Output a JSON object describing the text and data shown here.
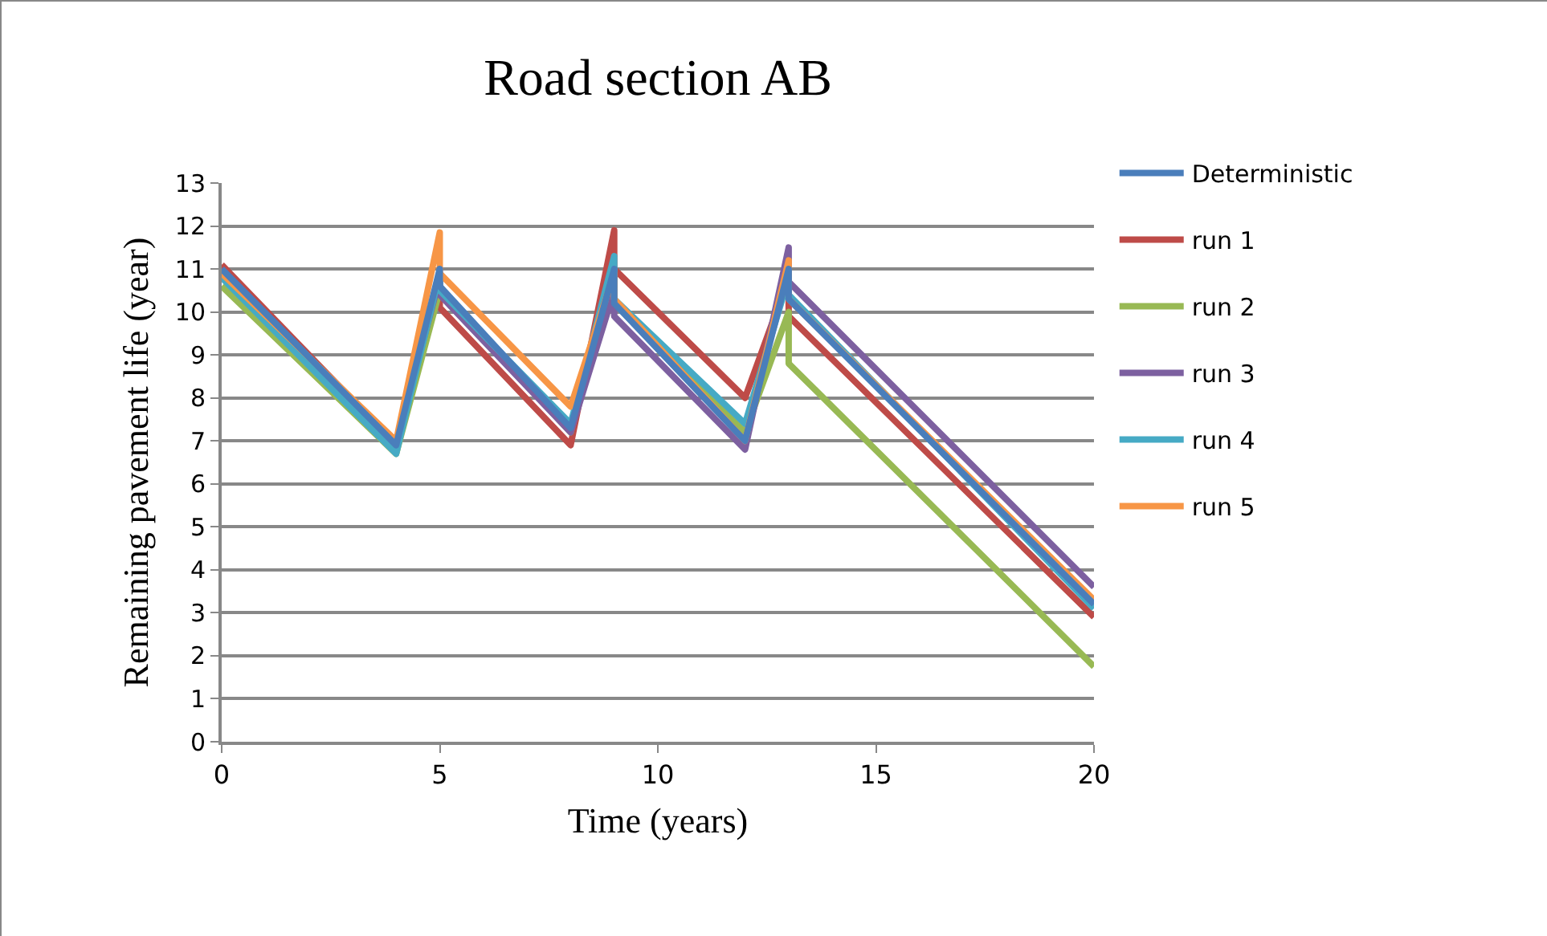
{
  "chart_data": {
    "type": "line",
    "title": "Road section AB",
    "xlabel": "Time (years)",
    "ylabel": "Remaining pavement life (year)",
    "x": [
      0,
      4,
      5,
      5,
      8,
      9,
      9,
      12,
      13,
      13,
      20
    ],
    "series": [
      {
        "name": "Deterministic",
        "color": "#4a7ebb",
        "values": [
          11.0,
          6.9,
          11.0,
          10.6,
          7.3,
          11.0,
          10.2,
          7.0,
          11.0,
          10.3,
          3.2
        ]
      },
      {
        "name": "run 1",
        "color": "#be4b48",
        "values": [
          11.1,
          6.9,
          10.9,
          10.1,
          6.9,
          11.9,
          11.0,
          8.0,
          10.8,
          9.9,
          2.9
        ]
      },
      {
        "name": "run 2",
        "color": "#98b954",
        "values": [
          10.6,
          6.7,
          10.5,
          10.5,
          7.2,
          11.0,
          10.2,
          7.2,
          10.0,
          8.8,
          1.75
        ]
      },
      {
        "name": "run 3",
        "color": "#7d60a0",
        "values": [
          11.0,
          6.9,
          10.8,
          10.4,
          7.2,
          10.5,
          9.9,
          6.8,
          11.5,
          10.7,
          3.6
        ]
      },
      {
        "name": "run 4",
        "color": "#46aac5",
        "values": [
          10.8,
          6.7,
          10.9,
          10.5,
          7.4,
          11.3,
          10.3,
          7.4,
          10.8,
          10.4,
          3.1
        ]
      },
      {
        "name": "run 5",
        "color": "#f79646",
        "values": [
          10.9,
          7.0,
          11.85,
          10.9,
          7.8,
          10.9,
          10.3,
          7.0,
          11.2,
          10.3,
          3.3
        ]
      }
    ],
    "xlim": [
      0,
      20
    ],
    "xticks": [
      0,
      5,
      10,
      15,
      20
    ],
    "ylim": [
      0,
      13
    ],
    "yticks": [
      0,
      1,
      2,
      3,
      4,
      5,
      6,
      7,
      8,
      9,
      10,
      11,
      12,
      13
    ],
    "grid": "y",
    "legend": "right",
    "marker": "none",
    "line_style": "solid"
  }
}
